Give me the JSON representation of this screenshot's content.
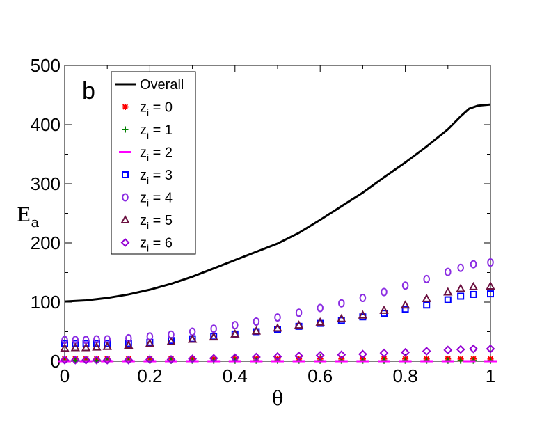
{
  "chart_data": {
    "type": "line",
    "panel_label": "b",
    "xlabel": "θ",
    "ylabel": "E",
    "ylabel_subscript": "a",
    "xlim": [
      0,
      1
    ],
    "ylim": [
      0,
      500
    ],
    "xticks": [
      0,
      0.2,
      0.4,
      0.6,
      0.8,
      1
    ],
    "xtick_labels": [
      "0",
      "0.2",
      "0.4",
      "0.6",
      "0.8",
      "1"
    ],
    "yticks": [
      0,
      100,
      200,
      300,
      400,
      500
    ],
    "ytick_labels": [
      "0",
      "100",
      "200",
      "300",
      "400",
      "500"
    ],
    "grid": false,
    "legend_position": "top-left",
    "series": [
      {
        "name": "Overall",
        "legend_main": "Overall",
        "legend_sub": "",
        "legend_rest": "",
        "marker": "line",
        "color": "#000000",
        "x": [
          0,
          0.05,
          0.1,
          0.15,
          0.2,
          0.25,
          0.3,
          0.35,
          0.4,
          0.45,
          0.5,
          0.55,
          0.6,
          0.65,
          0.7,
          0.75,
          0.8,
          0.85,
          0.9,
          0.93,
          0.95,
          0.97,
          1.0
        ],
        "y": [
          101,
          103,
          107,
          113,
          121,
          131,
          143,
          157,
          171,
          185,
          199,
          217,
          239,
          262,
          285,
          311,
          336,
          363,
          392,
          414,
          427,
          432,
          434
        ]
      },
      {
        "name": "z_i = 0",
        "legend_main": "z",
        "legend_sub": "i",
        "legend_rest": "  = 0",
        "marker": "asterisk",
        "color": "#ff0000",
        "x": [
          0,
          0.025,
          0.05,
          0.075,
          0.1,
          0.15,
          0.2,
          0.25,
          0.3,
          0.35,
          0.4,
          0.45,
          0.5,
          0.55,
          0.6,
          0.65,
          0.7,
          0.75,
          0.8,
          0.85,
          0.9,
          0.93,
          0.96,
          1.0
        ],
        "y": [
          4,
          4,
          4,
          4,
          4,
          4,
          4,
          4,
          4,
          4,
          4,
          4,
          4,
          4,
          4,
          4,
          4,
          4,
          4,
          4,
          4,
          4,
          4,
          4
        ]
      },
      {
        "name": "z_i = 1",
        "legend_main": "z",
        "legend_sub": "i",
        "legend_rest": " = 1",
        "marker": "plus",
        "color": "#008000",
        "x": [
          0,
          0.025,
          0.05,
          0.075,
          0.1,
          0.15,
          0.2,
          0.25,
          0.3,
          0.35,
          0.4,
          0.45,
          0.5,
          0.55,
          0.6,
          0.65,
          0.7,
          0.75,
          0.8,
          0.85,
          0.9,
          0.93,
          0.96,
          1.0
        ],
        "y": [
          1,
          1,
          1,
          1,
          1,
          1,
          1,
          1,
          1,
          1,
          1,
          1,
          1,
          1,
          1,
          1,
          1,
          1,
          1,
          1,
          1,
          1,
          1,
          1
        ]
      },
      {
        "name": "z_i = 2",
        "legend_main": "z",
        "legend_sub": "i",
        "legend_rest": " = 2",
        "marker": "dash",
        "color": "#ff00ff",
        "x": [
          0,
          0.05,
          0.1,
          0.15,
          0.2,
          0.25,
          0.3,
          0.35,
          0.4,
          0.45,
          0.5,
          0.55,
          0.6,
          0.65,
          0.7,
          0.75,
          0.8,
          0.85,
          0.9,
          0.95,
          1.0
        ],
        "y": [
          0,
          0,
          0,
          0,
          0,
          0,
          0,
          0,
          0,
          0,
          0,
          0,
          0,
          0,
          0,
          0,
          0,
          0,
          0,
          0,
          0
        ]
      },
      {
        "name": "z_i = 3",
        "legend_main": "z",
        "legend_sub": "i",
        "legend_rest": " = 3",
        "marker": "square",
        "color": "#0000ff",
        "x": [
          0,
          0.025,
          0.05,
          0.075,
          0.1,
          0.15,
          0.2,
          0.25,
          0.3,
          0.35,
          0.4,
          0.45,
          0.5,
          0.55,
          0.6,
          0.65,
          0.7,
          0.75,
          0.8,
          0.85,
          0.9,
          0.93,
          0.96,
          1.0
        ],
        "y": [
          30,
          30,
          30,
          30,
          30,
          30,
          32,
          35,
          38,
          42,
          46,
          50,
          54,
          59,
          64,
          69,
          75,
          81,
          88,
          95,
          104,
          110,
          113,
          114
        ]
      },
      {
        "name": "z_i = 4",
        "legend_main": "z",
        "legend_sub": "i",
        "legend_rest": " = 4",
        "marker": "circle",
        "color": "#8a2be2",
        "x": [
          0,
          0.025,
          0.05,
          0.075,
          0.1,
          0.15,
          0.2,
          0.25,
          0.3,
          0.35,
          0.4,
          0.45,
          0.5,
          0.55,
          0.6,
          0.65,
          0.7,
          0.75,
          0.8,
          0.85,
          0.9,
          0.93,
          0.96,
          1.0
        ],
        "y": [
          36,
          36,
          36,
          37,
          37,
          39,
          42,
          45,
          50,
          55,
          61,
          67,
          74,
          82,
          90,
          98,
          107,
          117,
          128,
          139,
          151,
          158,
          164,
          167
        ]
      },
      {
        "name": "z_i = 5",
        "legend_main": "z",
        "legend_sub": "i",
        "legend_rest": " = 5",
        "marker": "triangle",
        "color": "#6b1040",
        "x": [
          0,
          0.025,
          0.05,
          0.075,
          0.1,
          0.15,
          0.2,
          0.25,
          0.3,
          0.35,
          0.4,
          0.45,
          0.5,
          0.55,
          0.6,
          0.65,
          0.7,
          0.75,
          0.8,
          0.85,
          0.9,
          0.93,
          0.96,
          1.0
        ],
        "y": [
          22,
          23,
          23,
          24,
          25,
          27,
          30,
          33,
          37,
          41,
          46,
          51,
          56,
          61,
          66,
          72,
          78,
          86,
          95,
          106,
          117,
          123,
          126,
          127
        ]
      },
      {
        "name": "z_i = 6",
        "legend_main": "z",
        "legend_sub": "i",
        "legend_rest": " = 6",
        "marker": "diamond",
        "color": "#9400d3",
        "x": [
          0,
          0.025,
          0.05,
          0.075,
          0.1,
          0.15,
          0.2,
          0.25,
          0.3,
          0.35,
          0.4,
          0.45,
          0.5,
          0.55,
          0.6,
          0.65,
          0.7,
          0.75,
          0.8,
          0.85,
          0.9,
          0.93,
          0.96,
          1.0
        ],
        "y": [
          2,
          2,
          2,
          2,
          2,
          2,
          3,
          3,
          4,
          5,
          6,
          7,
          8,
          9,
          10,
          11,
          12,
          14,
          15,
          17,
          19,
          20,
          21,
          21
        ]
      }
    ]
  }
}
